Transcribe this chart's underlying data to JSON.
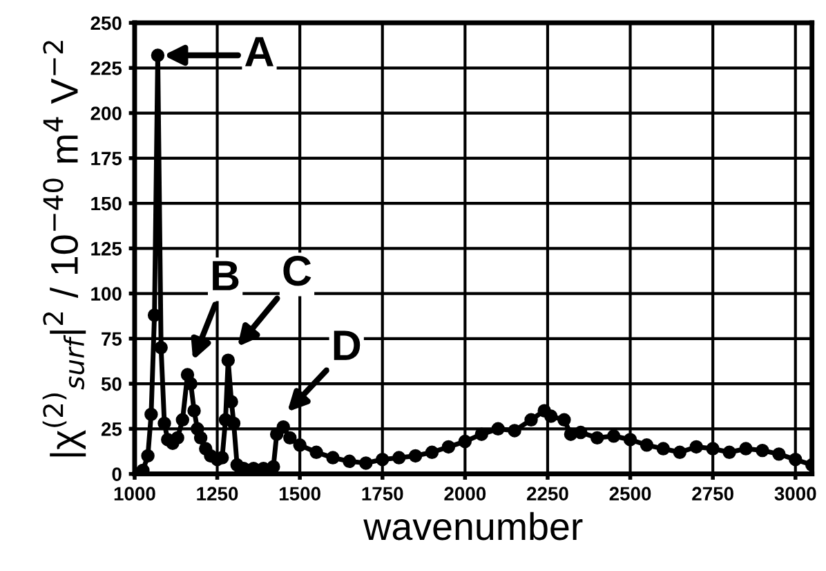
{
  "chart_data": {
    "type": "line",
    "xlabel": "wavenumber",
    "ylabel": "|χ$^{(2)}$$_{surf}$|$^{2}$ / 10$^{−40}$ m$^{4}$ V$^{−2}$",
    "series": [
      {
        "color": "#000000",
        "x": [
          1010,
          1025,
          1040,
          1050,
          1060,
          1070,
          1080,
          1090,
          1100,
          1115,
          1130,
          1145,
          1160,
          1170,
          1180,
          1190,
          1200,
          1215,
          1230,
          1250,
          1265,
          1275,
          1283,
          1293,
          1300,
          1310,
          1330,
          1360,
          1390,
          1420,
          1430,
          1450,
          1470,
          1500,
          1550,
          1600,
          1650,
          1700,
          1750,
          1800,
          1850,
          1900,
          1950,
          2000,
          2050,
          2100,
          2150,
          2200,
          2240,
          2260,
          2300,
          2320,
          2350,
          2400,
          2450,
          2500,
          2550,
          2600,
          2650,
          2700,
          2750,
          2800,
          2850,
          2900,
          2950,
          3000,
          3050
        ],
        "values": [
          0,
          2,
          10,
          33,
          88,
          232,
          70,
          28,
          19,
          17,
          20,
          30,
          55,
          50,
          35,
          25,
          20,
          14,
          10,
          8,
          9,
          30,
          63,
          40,
          28,
          5,
          3,
          3,
          3,
          4,
          22,
          26,
          20,
          16,
          12,
          9,
          7,
          6,
          8,
          9,
          10,
          12,
          15,
          18,
          22,
          25,
          24,
          30,
          35,
          32,
          30,
          22,
          23,
          20,
          21,
          19,
          16,
          14,
          12,
          15,
          14,
          12,
          14,
          13,
          11,
          8,
          5
        ]
      }
    ],
    "annotations": [
      {
        "text": "A",
        "x": 1070,
        "y": 232
      },
      {
        "text": "B",
        "x": 1170,
        "y": 60
      },
      {
        "text": "C",
        "x": 1300,
        "y": 68
      },
      {
        "text": "D",
        "x": 1450,
        "y": 32
      }
    ],
    "xlim": [
      1000,
      3050
    ],
    "ylim": [
      0,
      250
    ],
    "xticks": [
      1000,
      1250,
      1500,
      1750,
      2000,
      2250,
      2500,
      2750,
      3000
    ],
    "yticks": [
      0,
      25,
      50,
      75,
      100,
      125,
      150,
      175,
      200,
      225,
      250
    ],
    "grid": true,
    "marker": "circle",
    "line_style": "solid"
  }
}
